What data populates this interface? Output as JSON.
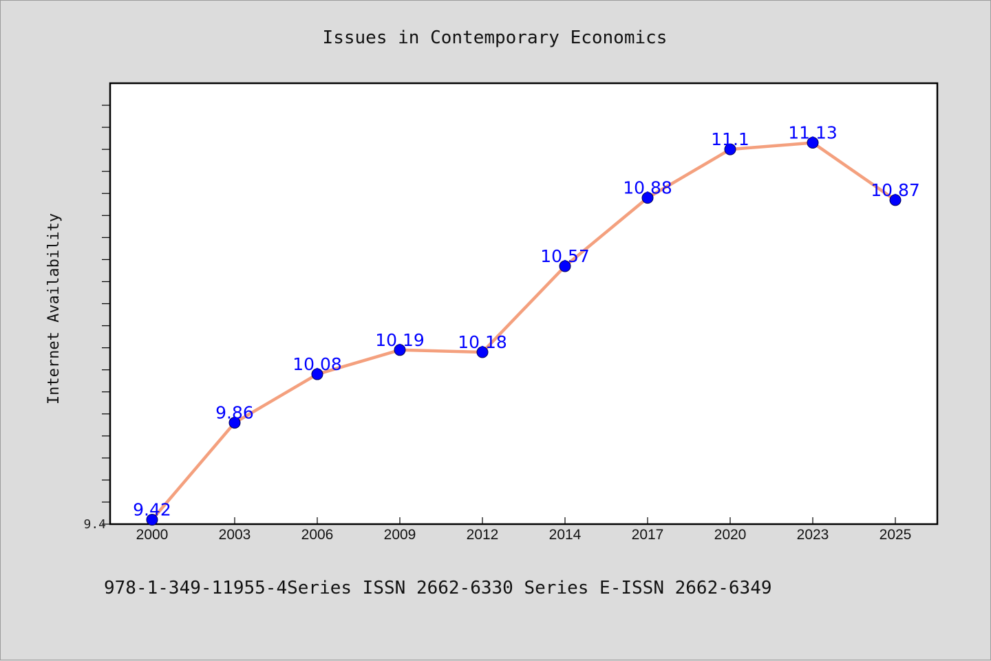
{
  "chart_data": {
    "type": "line",
    "title": "Issues in Contemporary Economics",
    "xlabel": "",
    "ylabel": "Internet Availability",
    "categories": [
      "2000",
      "2003",
      "2006",
      "2009",
      "2012",
      "2014",
      "2017",
      "2020",
      "2023",
      "2025"
    ],
    "series": [
      {
        "values": [
          9.42,
          9.86,
          10.08,
          10.19,
          10.18,
          10.57,
          10.88,
          11.1,
          11.13,
          10.87
        ],
        "labels": [
          "9.42",
          "9.86",
          "10.08",
          "10.19",
          "10.18",
          "10.57",
          "10.88",
          "11.1",
          "11.13",
          "10.87"
        ],
        "line_color": "#f4a07e",
        "marker_color": "#0000ff"
      }
    ],
    "ylim": [
      9.4,
      11.4
    ],
    "yticks_labeled": [
      "9.4"
    ],
    "grid": false,
    "legend": "none",
    "footer": "978-1-349-11955-4Series ISSN 2662-6330 Series E-ISSN 2662-6349",
    "colors": {
      "background": "#dcdcdc",
      "plot_background": "#ffffff",
      "label_color": "#0000ff"
    }
  }
}
